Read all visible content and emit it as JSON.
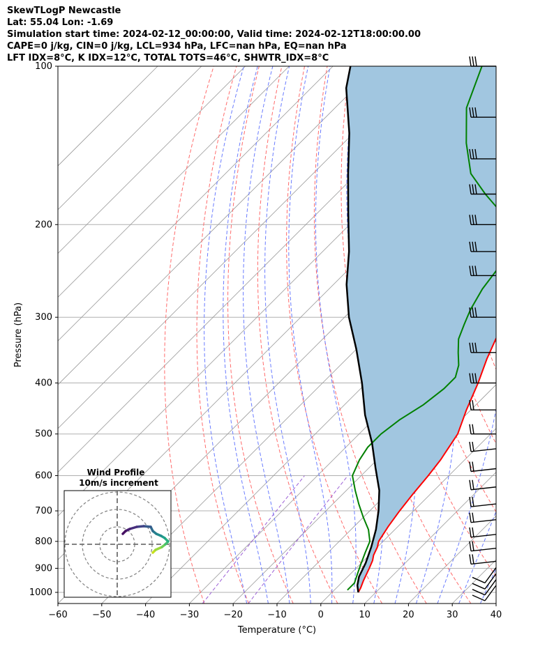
{
  "header": {
    "title": "SkewTLogP Newcastle",
    "location": "Lat: 55.04   Lon: -1.69",
    "times": "Simulation start time: 2024-02-12_00:00:00, Valid time: 2024-02-12T18:00:00.00",
    "indices1": "CAPE=0 j/kg, CIN=0 j/kg, LCL=934 hPa, LFC=nan hPa, EQ=nan hPa",
    "indices2": "LFT IDX=8°C, K IDX=12°C, TOTAL TOTS=46°C, SHWTR_IDX=8°C"
  },
  "chart_data": [
    {
      "type": "line",
      "subtype": "skew-t log-p",
      "xlabel": "Temperature (°C)",
      "ylabel": "Pressure (hPa)",
      "xlim": [
        -60,
        40
      ],
      "ylim": [
        1050,
        100
      ],
      "x_ticks": [
        -60,
        -50,
        -40,
        -30,
        -20,
        -10,
        0,
        10,
        20,
        30,
        40
      ],
      "y_ticks": [
        100,
        200,
        300,
        400,
        500,
        600,
        700,
        800,
        900,
        1000
      ],
      "y_scale": "log",
      "skew": "45 degrees",
      "grid": true,
      "colors": {
        "temperature": "#ff0000",
        "dewpoint": "#008000",
        "parcel": "#000000",
        "cin_shading": "#a1c6e0",
        "dry_adiabats": "#ff6b6b",
        "moist_adiabats": "#6a7cff",
        "mixing_ratio": "#9b5fd6",
        "isotherms": "#999999"
      },
      "series": [
        {
          "role": "temperature",
          "points": [
            [
              6,
              1000
            ],
            [
              5.5,
              980
            ],
            [
              4.5,
              950
            ],
            [
              3,
              900
            ],
            [
              2,
              870
            ],
            [
              1,
              850
            ],
            [
              0,
              820
            ],
            [
              -1,
              800
            ],
            [
              -2.2,
              750
            ],
            [
              -3.2,
              700
            ],
            [
              -4,
              650
            ],
            [
              -4.7,
              600
            ],
            [
              -5.5,
              560
            ],
            [
              -7.5,
              500
            ],
            [
              -11,
              450
            ],
            [
              -14.5,
              400
            ],
            [
              -18,
              360
            ],
            [
              -20.5,
              330
            ],
            [
              -22,
              310
            ],
            [
              -23,
              300
            ],
            [
              -25,
              280
            ],
            [
              -27.5,
              265
            ],
            [
              -30,
              250
            ],
            [
              -33,
              235
            ],
            [
              -38,
              215
            ],
            [
              -44,
              195
            ],
            [
              -50,
              180
            ],
            [
              -54,
              168
            ],
            [
              -57,
              155
            ],
            [
              -60,
              140
            ],
            [
              -64,
              125
            ],
            [
              -68,
              112
            ],
            [
              -71,
              100
            ]
          ]
        },
        {
          "role": "dewpoint",
          "points": [
            [
              3,
              990
            ],
            [
              3,
              960
            ],
            [
              1.5,
              920
            ],
            [
              0,
              880
            ],
            [
              -1.5,
              840
            ],
            [
              -3,
              800
            ],
            [
              -6,
              760
            ],
            [
              -10,
              720
            ],
            [
              -14,
              680
            ],
            [
              -18,
              640
            ],
            [
              -22,
              600
            ],
            [
              -24,
              560
            ],
            [
              -25,
              530
            ],
            [
              -25,
              500
            ],
            [
              -24,
              470
            ],
            [
              -22,
              440
            ],
            [
              -21,
              410
            ],
            [
              -21,
              390
            ],
            [
              -23,
              370
            ],
            [
              -26,
              350
            ],
            [
              -29,
              330
            ],
            [
              -31,
              310
            ],
            [
              -32,
              300
            ],
            [
              -33,
              290
            ],
            [
              -35,
              265
            ],
            [
              -36,
              245
            ],
            [
              -38,
              225
            ],
            [
              -40,
              210
            ],
            [
              -42,
              200
            ],
            [
              -48,
              190
            ],
            [
              -56,
              175
            ],
            [
              -64,
              160
            ],
            [
              -72,
              140
            ],
            [
              -80,
              120
            ],
            [
              -86,
              100
            ]
          ]
        },
        {
          "role": "parcel",
          "points": [
            [
              6,
              1000
            ],
            [
              4.2,
              970
            ],
            [
              2.6,
              934
            ],
            [
              1,
              880
            ],
            [
              -1.4,
              820
            ],
            [
              -4.3,
              760
            ],
            [
              -8,
              700
            ],
            [
              -12.5,
              640
            ],
            [
              -18.5,
              580
            ],
            [
              -25,
              520
            ],
            [
              -33,
              460
            ],
            [
              -41,
              400
            ],
            [
              -50,
              345
            ],
            [
              -59,
              300
            ],
            [
              -67,
              260
            ],
            [
              -74,
              225
            ],
            [
              -83,
              190
            ],
            [
              -92,
              160
            ],
            [
              -101,
              134
            ],
            [
              -112,
              110
            ],
            [
              -116,
              100
            ]
          ]
        }
      ]
    },
    {
      "type": "line",
      "subtype": "hodograph",
      "title": "Wind Profile",
      "subtitle": "10m/s increment",
      "rings_mps": [
        10,
        20,
        30
      ]
    }
  ]
}
